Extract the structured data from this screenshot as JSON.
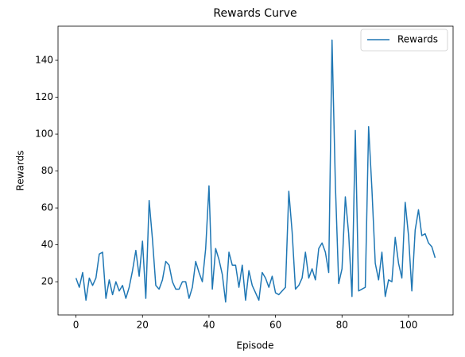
{
  "chart_data": {
    "type": "line",
    "title": "Rewards Curve",
    "xlabel": "Episode",
    "ylabel": "Rewards",
    "x": [
      0,
      1,
      2,
      3,
      4,
      5,
      6,
      7,
      8,
      9,
      10,
      11,
      12,
      13,
      14,
      15,
      16,
      17,
      18,
      19,
      20,
      21,
      22,
      23,
      24,
      25,
      26,
      27,
      28,
      29,
      30,
      31,
      32,
      33,
      34,
      35,
      36,
      37,
      38,
      39,
      40,
      41,
      42,
      43,
      44,
      45,
      46,
      47,
      48,
      49,
      50,
      51,
      52,
      53,
      54,
      55,
      56,
      57,
      58,
      59,
      60,
      61,
      62,
      63,
      64,
      65,
      66,
      67,
      68,
      69,
      70,
      71,
      72,
      73,
      74,
      75,
      76,
      77,
      78,
      79,
      80,
      81,
      82,
      83,
      84,
      85,
      86,
      87,
      88,
      89,
      90,
      91,
      92,
      93,
      94,
      95,
      96,
      97,
      98,
      99,
      100,
      101,
      102,
      103,
      104,
      105,
      106,
      107,
      108
    ],
    "series": [
      {
        "name": "Rewards",
        "color": "#1f77b4",
        "values": [
          22,
          17,
          25,
          10,
          22,
          18,
          22,
          35,
          36,
          11,
          21,
          13,
          20,
          15,
          18,
          11,
          17,
          26,
          37,
          23,
          42,
          11,
          64,
          43,
          18,
          16,
          21,
          31,
          29,
          20,
          16,
          16,
          20,
          20,
          11,
          17,
          31,
          25,
          20,
          38,
          72,
          16,
          38,
          32,
          24,
          9,
          36,
          29,
          29,
          17,
          29,
          10,
          26,
          18,
          14,
          10,
          25,
          22,
          17,
          23,
          14,
          13,
          15,
          17,
          69,
          47,
          16,
          18,
          22,
          36,
          22,
          27,
          21,
          38,
          41,
          36,
          25,
          151,
          73,
          19,
          27,
          66,
          46,
          12,
          102,
          15,
          16,
          17,
          104,
          70,
          30,
          21,
          36,
          12,
          21,
          20,
          44,
          30,
          22,
          63,
          45,
          15,
          48,
          59,
          45,
          46,
          41,
          39,
          33
        ]
      }
    ],
    "xlim": [
      -5.4,
      113.4
    ],
    "ylim": [
      2,
      158.5
    ],
    "xticks": [
      0,
      20,
      40,
      60,
      80,
      100
    ],
    "yticks": [
      20,
      40,
      60,
      80,
      100,
      120,
      140
    ],
    "legend": "upper right"
  }
}
